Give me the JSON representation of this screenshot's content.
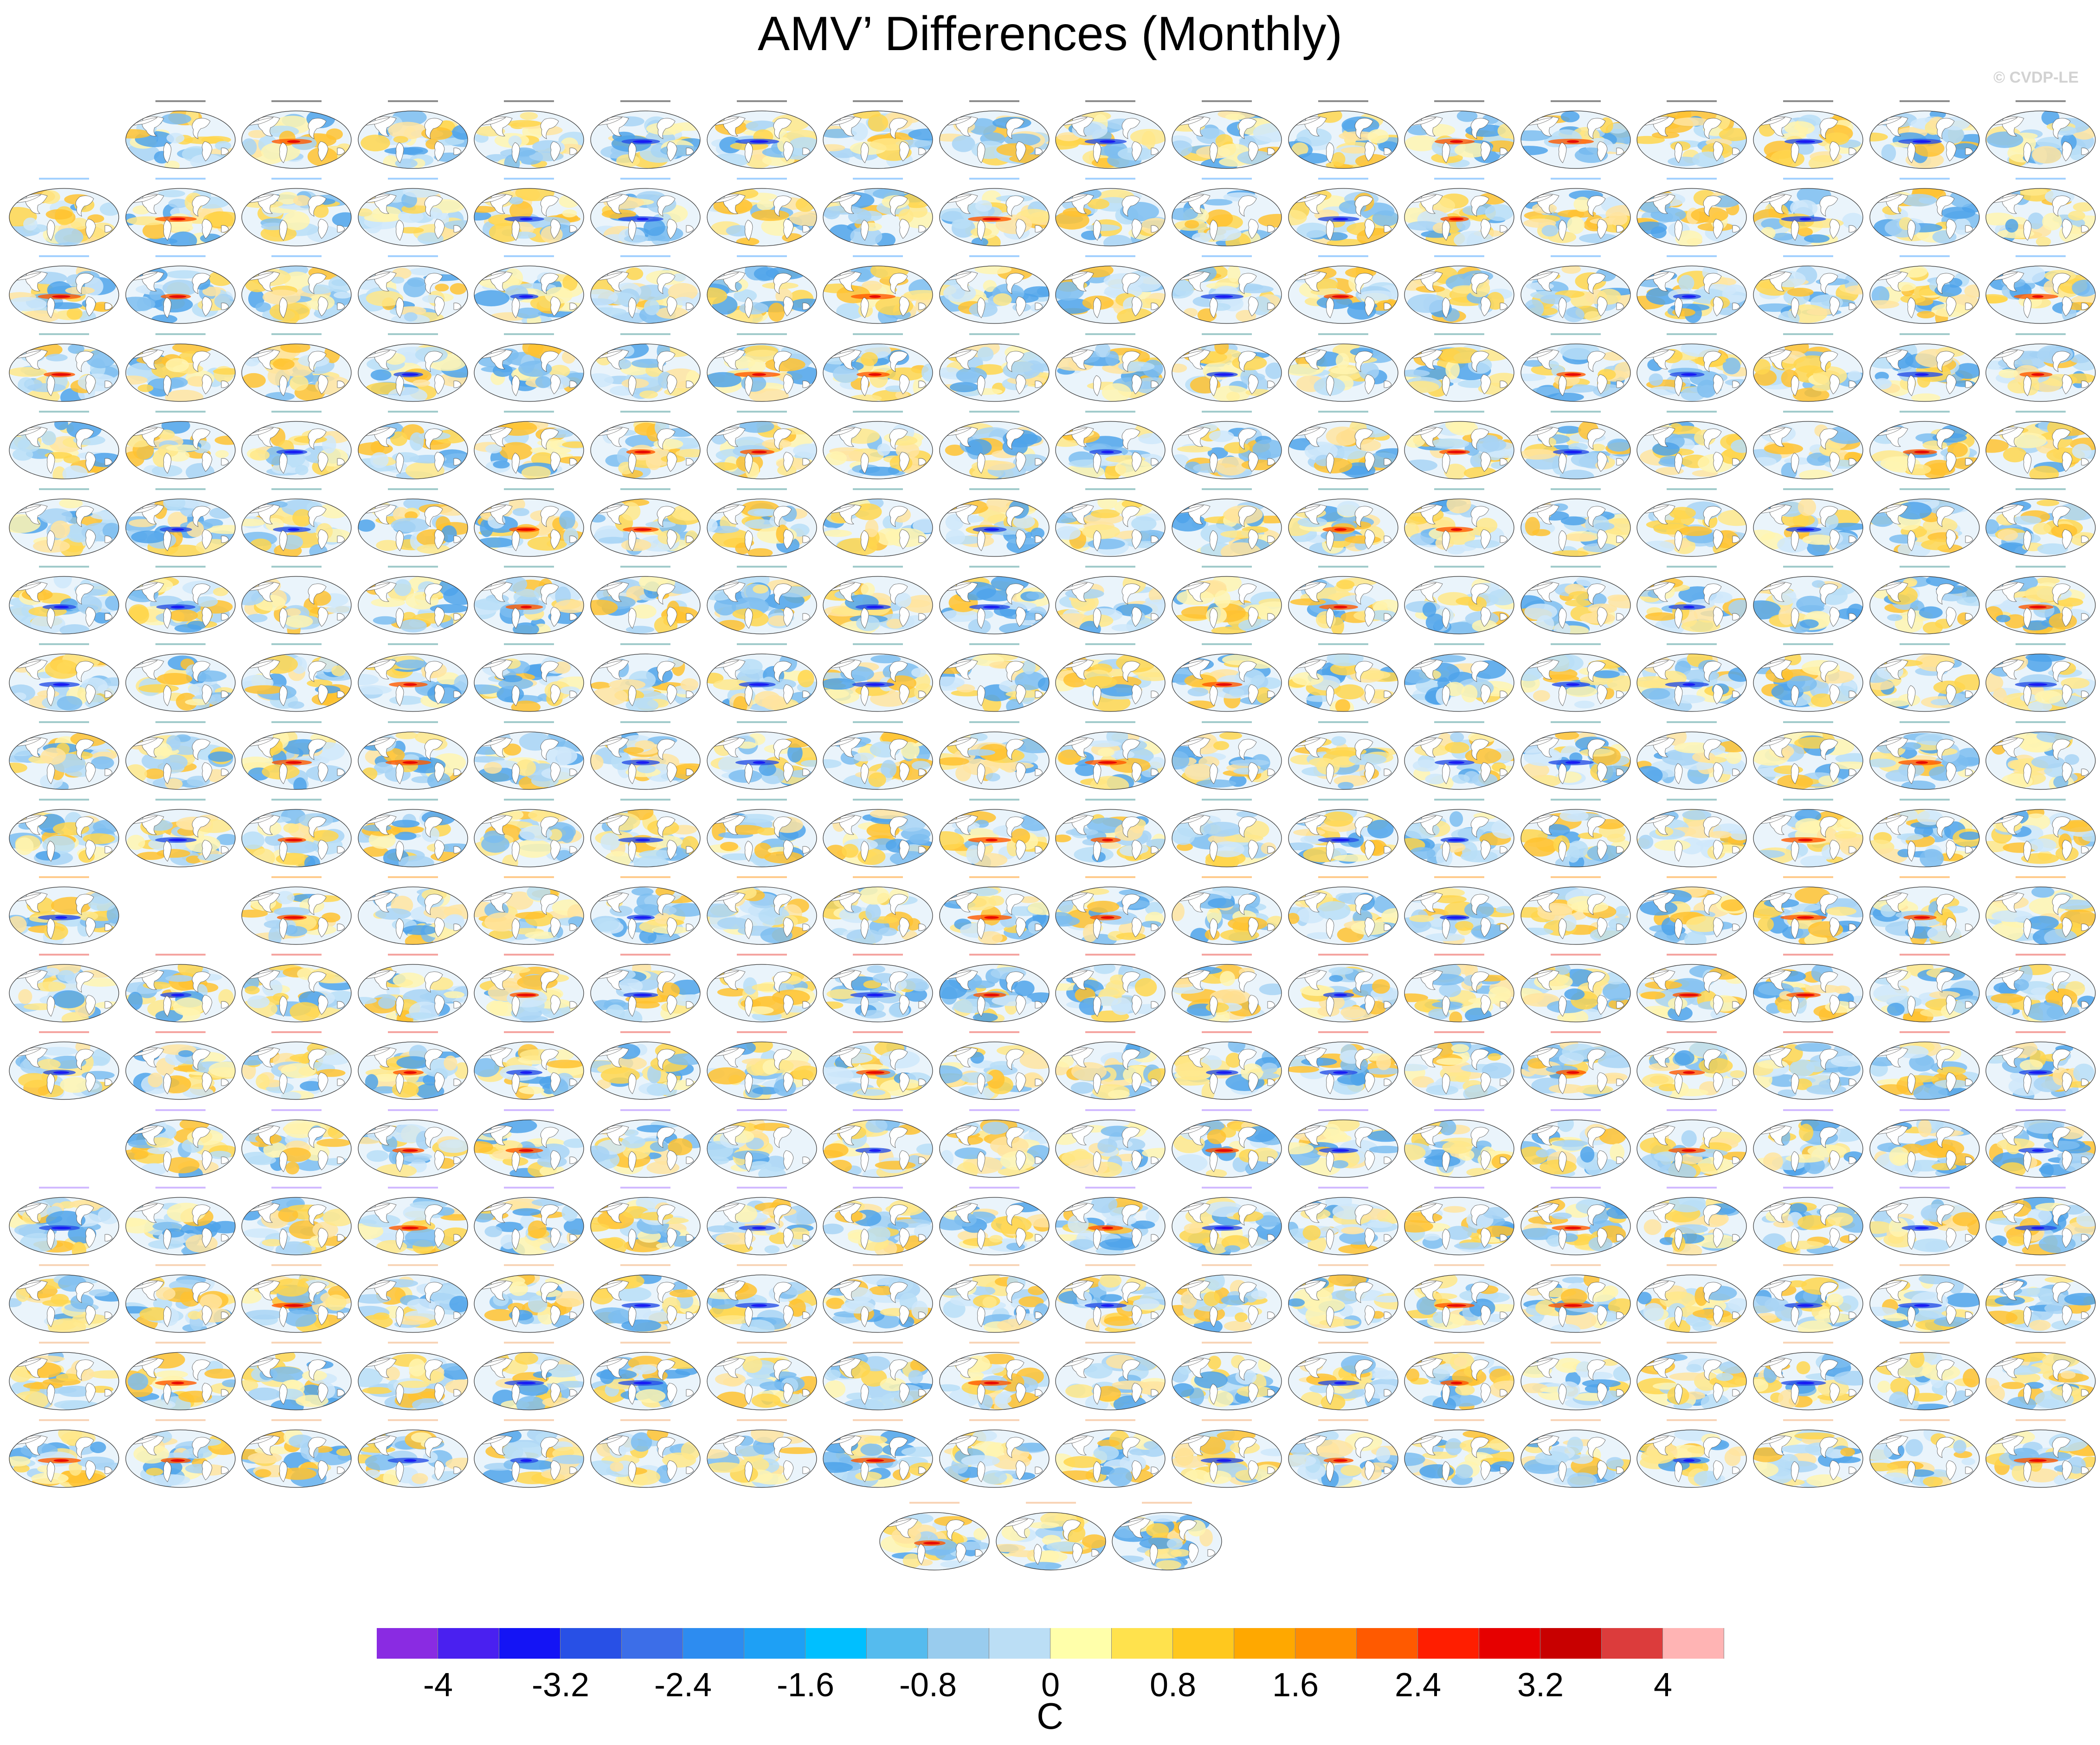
{
  "title": "AMV’ Differences (Monthly)",
  "credit": "© CVDP-LE",
  "colorbar": {
    "units": "C",
    "tick_labels": [
      "-4",
      "-3.2",
      "-2.4",
      "-1.6",
      "-0.8",
      "0",
      "0.8",
      "1.6",
      "2.4",
      "3.2",
      "4"
    ],
    "colors": [
      "#8a2be2",
      "#4a20f0",
      "#1414f5",
      "#2850e6",
      "#3c6ee8",
      "#2d8cf0",
      "#1ea0f5",
      "#00bfff",
      "#55bbee",
      "#99ccee",
      "#bbdef5",
      "#ffffaa",
      "#ffe24d",
      "#ffc81e",
      "#ffa800",
      "#ff8c00",
      "#ff5a00",
      "#ff1e00",
      "#e60000",
      "#c80000",
      "#dc3c3c",
      "#ffb4b4"
    ]
  },
  "panels": {
    "rows": [
      {
        "start": 1,
        "count": 17,
        "group": "obs"
      },
      {
        "start": 0,
        "count": 18,
        "group": "cesm"
      },
      {
        "start": 0,
        "count": 18,
        "group": "cesm"
      },
      {
        "start": 0,
        "count": 18,
        "group": "cesm2"
      },
      {
        "start": 0,
        "count": 18,
        "group": "cesm2"
      },
      {
        "start": 0,
        "count": 18,
        "group": "cesm2"
      },
      {
        "start": 0,
        "count": 18,
        "group": "cesm2"
      },
      {
        "start": 0,
        "count": 18,
        "group": "cesm2"
      },
      {
        "start": 0,
        "count": 18,
        "group": "cesm2"
      },
      {
        "start": 0,
        "count": 18,
        "group": "cesm2"
      },
      {
        "start": 0,
        "count": 1,
        "group": "cmip",
        "extra": {
          "start": 2,
          "count": 16
        }
      },
      {
        "start": 0,
        "count": 18,
        "group": "giss"
      },
      {
        "start": 0,
        "count": 18,
        "group": "giss"
      },
      {
        "start": 1,
        "count": 17,
        "group": "ipsl"
      },
      {
        "start": 0,
        "count": 18,
        "group": "ipsl"
      },
      {
        "start": 0,
        "count": 18,
        "group": "miroc"
      },
      {
        "start": 0,
        "count": 18,
        "group": "miroc"
      },
      {
        "start": 0,
        "count": 18,
        "group": "miroc"
      }
    ],
    "final_row": {
      "count": 3,
      "group": "miroc"
    },
    "label_colors": {
      "obs": "#000000",
      "cesm": "#3399ff",
      "cesm2": "#2e8b8b",
      "cmip": "#ff8c00",
      "giss": "#e8352d",
      "ipsl": "#9966ff",
      "miroc": "#f0a060"
    }
  }
}
